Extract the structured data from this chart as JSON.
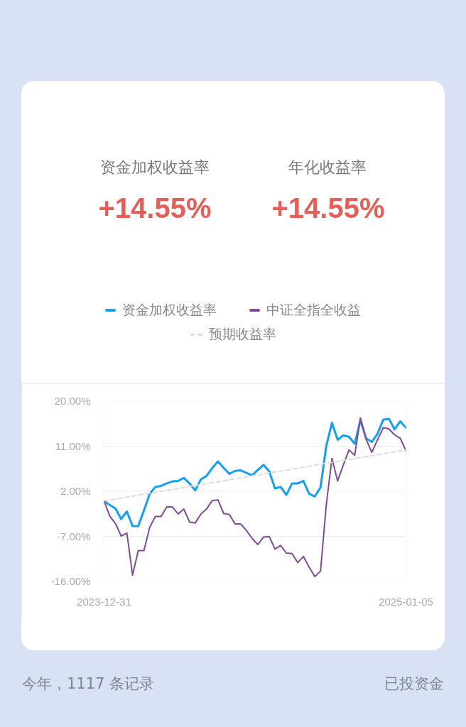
{
  "chart_data": {
    "type": "line",
    "x": [
      "2023-12-31",
      "2024-01-07",
      "2024-01-14",
      "2024-01-21",
      "2024-01-28",
      "2024-02-04",
      "2024-02-11",
      "2024-02-18",
      "2024-02-25",
      "2024-03-03",
      "2024-03-10",
      "2024-03-17",
      "2024-03-24",
      "2024-03-31",
      "2024-04-07",
      "2024-04-14",
      "2024-04-21",
      "2024-04-28",
      "2024-05-05",
      "2024-05-12",
      "2024-05-19",
      "2024-05-26",
      "2024-06-02",
      "2024-06-09",
      "2024-06-16",
      "2024-06-23",
      "2024-06-30",
      "2024-07-07",
      "2024-07-14",
      "2024-07-21",
      "2024-07-28",
      "2024-08-04",
      "2024-08-11",
      "2024-08-18",
      "2024-08-25",
      "2024-09-01",
      "2024-09-08",
      "2024-09-15",
      "2024-09-22",
      "2024-09-29",
      "2024-10-06",
      "2024-10-13",
      "2024-10-20",
      "2024-10-27",
      "2024-11-03",
      "2024-11-10",
      "2024-11-17",
      "2024-11-24",
      "2024-12-01",
      "2024-12-08",
      "2024-12-15",
      "2024-12-22",
      "2024-12-29",
      "2025-01-05"
    ],
    "series": [
      {
        "name": "资金加权收益率",
        "color": "#149ff0",
        "values": [
          0,
          -0.8,
          -1.5,
          -3.6,
          -2.1,
          -5.0,
          -5.0,
          -1.9,
          1.4,
          2.8,
          3.0,
          3.5,
          3.9,
          4.0,
          4.6,
          3.5,
          2.1,
          4.3,
          5.0,
          6.6,
          7.9,
          6.6,
          5.4,
          6.0,
          6.1,
          5.6,
          5.1,
          6.2,
          7.2,
          5.9,
          2.5,
          2.8,
          1.2,
          3.5,
          3.5,
          4.0,
          1.4,
          0.9,
          2.7,
          10.9,
          15.6,
          12.2,
          13.1,
          12.8,
          11.4,
          16.1,
          12.5,
          11.8,
          13.4,
          16.2,
          16.4,
          14.3,
          15.9,
          14.6
        ]
      },
      {
        "name": "中证全指全收益",
        "color": "#7e4b94",
        "values": [
          0,
          -3.0,
          -4.5,
          -7.0,
          -6.4,
          -14.8,
          -9.9,
          -9.9,
          -5.3,
          -3.1,
          -3.1,
          -1.2,
          -1.2,
          -2.6,
          -1.6,
          -4.2,
          -4.4,
          -2.6,
          -1.6,
          0.1,
          0.2,
          -2.5,
          -2.7,
          -4.6,
          -4.6,
          -5.9,
          -7.5,
          -8.7,
          -7.2,
          -7.1,
          -9.6,
          -8.9,
          -10.4,
          -10.5,
          -12.3,
          -11.1,
          -13.2,
          -15.1,
          -14.0,
          -0.9,
          8.5,
          4.0,
          7.2,
          10.2,
          9.1,
          16.6,
          12.3,
          9.7,
          12.2,
          14.6,
          14.4,
          13.2,
          12.5,
          10.0
        ]
      },
      {
        "name": "预期收益率",
        "color": "#dddddd",
        "line_style": "dashed",
        "x": [
          "2023-12-31",
          "2025-01-05"
        ],
        "values": [
          0,
          10.2
        ]
      }
    ],
    "xlim": [
      "2023-12-31",
      "2025-01-05"
    ],
    "xticks": [
      "2023-12-31",
      "2025-01-05"
    ],
    "ylim": [
      -16,
      20
    ],
    "yticks": [
      {
        "value": -16,
        "label": "-16.00%"
      },
      {
        "value": -7,
        "label": "-7.00%"
      },
      {
        "value": 2,
        "label": "2.00%"
      },
      {
        "value": 11,
        "label": "11.00%"
      },
      {
        "value": 20,
        "label": "20.00%"
      }
    ],
    "grid": "y",
    "legend": "top",
    "line_style": "solid",
    "annotations": [
      "资金加权收益率",
      "+14.55%",
      "年化收益率",
      "+14.55%",
      "今年，1117 条记录",
      "已投资金"
    ]
  }
}
